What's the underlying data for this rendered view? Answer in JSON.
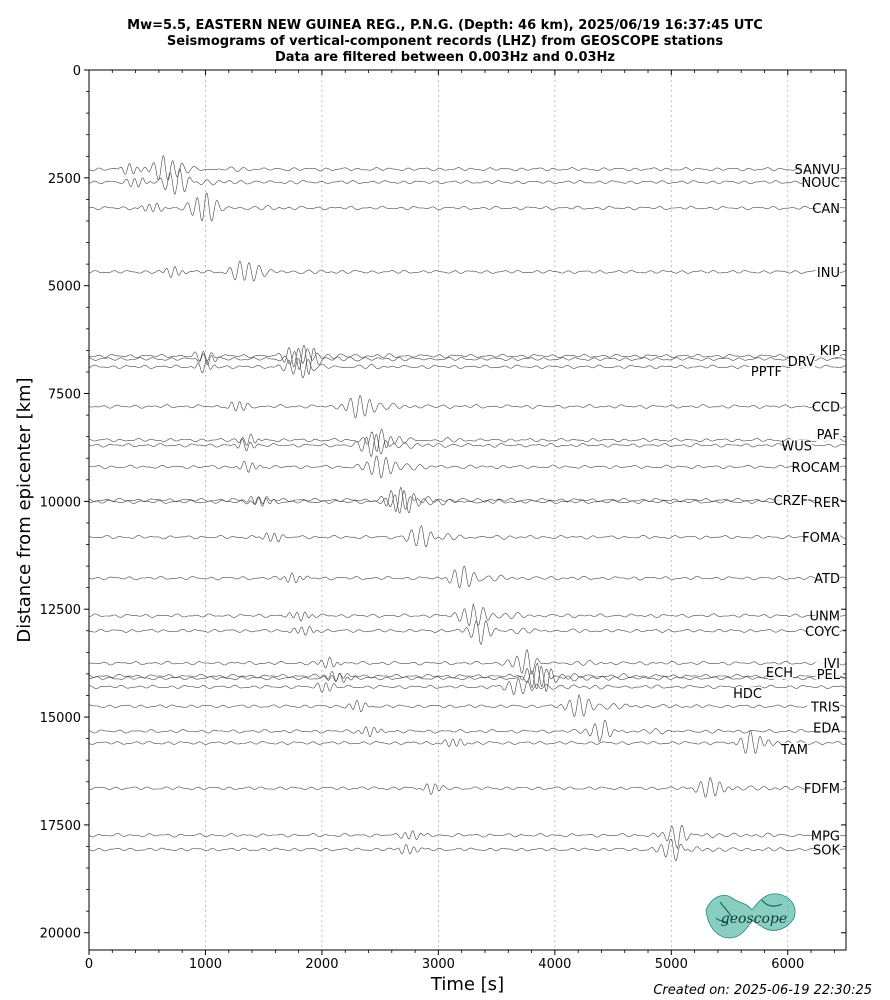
{
  "chart_data": {
    "type": "line",
    "title": [
      "Mw=5.5, EASTERN NEW GUINEA REG., P.N.G. (Depth: 46 km), 2025/06/19 16:37:45 UTC",
      "Seismograms of vertical-component records (LHZ) from GEOSCOPE stations",
      "Data are filtered between 0.003Hz and 0.03Hz"
    ],
    "xlabel": "Time [s]",
    "ylabel": "Distance from epicenter [km]",
    "xlim": [
      0,
      6500
    ],
    "ylim": [
      20400,
      0
    ],
    "y_inverted": true,
    "x_ticks": [
      0,
      1000,
      2000,
      3000,
      4000,
      5000,
      6000
    ],
    "y_ticks": [
      0,
      2500,
      5000,
      7500,
      10000,
      12500,
      15000,
      17500,
      20000
    ],
    "grid": "vertical-dotted",
    "stations": [
      {
        "name": "SANVU",
        "distance": 2300,
        "arrival": 650,
        "amp": 1.0
      },
      {
        "name": "NOUC",
        "distance": 2600,
        "arrival": 750,
        "amp": 1.0
      },
      {
        "name": "CAN",
        "distance": 3200,
        "arrival": 980,
        "amp": 1.0
      },
      {
        "name": "INU",
        "distance": 4680,
        "arrival": 1330,
        "amp": 0.8
      },
      {
        "name": "KIP",
        "distance": 6630,
        "arrival": 1780,
        "amp": 0.9
      },
      {
        "name": "DRV",
        "distance": 6700,
        "arrival": 1850,
        "amp": 1.0
      },
      {
        "name": "PPTF",
        "distance": 6880,
        "arrival": 1800,
        "amp": 0.7
      },
      {
        "name": "CCD",
        "distance": 7800,
        "arrival": 2320,
        "amp": 0.9
      },
      {
        "name": "PAF",
        "distance": 8580,
        "arrival": 2500,
        "amp": 1.0
      },
      {
        "name": "WUS",
        "distance": 8700,
        "arrival": 2450,
        "amp": 0.9
      },
      {
        "name": "ROCAM",
        "distance": 9200,
        "arrival": 2500,
        "amp": 0.9
      },
      {
        "name": "CRZF",
        "distance": 9970,
        "arrival": 2650,
        "amp": 1.0
      },
      {
        "name": "RER",
        "distance": 10010,
        "arrival": 2700,
        "amp": 0.9
      },
      {
        "name": "FOMA",
        "distance": 10830,
        "arrival": 2850,
        "amp": 0.9
      },
      {
        "name": "ATD",
        "distance": 11780,
        "arrival": 3200,
        "amp": 0.8
      },
      {
        "name": "UNM",
        "distance": 12650,
        "arrival": 3300,
        "amp": 0.9
      },
      {
        "name": "COYC",
        "distance": 13000,
        "arrival": 3350,
        "amp": 0.8
      },
      {
        "name": "IVI",
        "distance": 13750,
        "arrival": 3750,
        "amp": 0.8
      },
      {
        "name": "ECH",
        "distance": 14050,
        "arrival": 3850,
        "amp": 1.0
      },
      {
        "name": "PEL",
        "distance": 14100,
        "arrival": 3900,
        "amp": 1.0
      },
      {
        "name": "HDC",
        "distance": 14300,
        "arrival": 3700,
        "amp": 0.8
      },
      {
        "name": "TRIS",
        "distance": 14750,
        "arrival": 4200,
        "amp": 0.8
      },
      {
        "name": "EDA",
        "distance": 15330,
        "arrival": 4400,
        "amp": 0.7
      },
      {
        "name": "TAM",
        "distance": 15600,
        "arrival": 5700,
        "amp": 1.0
      },
      {
        "name": "FDFM",
        "distance": 16650,
        "arrival": 5350,
        "amp": 0.9
      },
      {
        "name": "MPG",
        "distance": 17740,
        "arrival": 5050,
        "amp": 0.8
      },
      {
        "name": "SOK",
        "distance": 18070,
        "arrival": 5000,
        "amp": 0.8
      }
    ]
  },
  "footer": {
    "created": "Created on: 2025-06-19 22:30:25",
    "logo_text": "geoscope"
  },
  "colors": {
    "trace": "#444444",
    "grid": "#b0b0b0",
    "logo": "#2aa58f"
  }
}
